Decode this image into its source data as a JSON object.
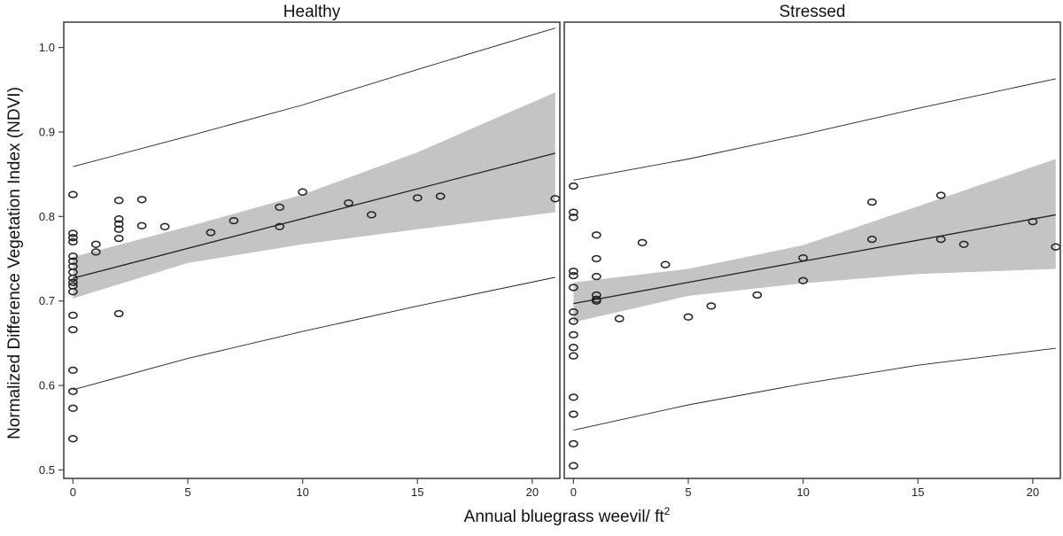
{
  "chart_data": {
    "type": "scatter",
    "ylabel": "Normalized Difference Vegetation Index (NDVI)",
    "xlabel": "Annual bluegrass weevil/ ft",
    "xlabel_superscript": "2",
    "ylim": [
      0.49,
      1.03
    ],
    "yticks": [
      "0.5",
      "0.6",
      "0.7",
      "0.8",
      "0.9",
      "1.0"
    ],
    "yticks_values": [
      0.5,
      0.6,
      0.7,
      0.8,
      0.9,
      1.0
    ],
    "xticks": [
      "0",
      "5",
      "10",
      "15",
      "20"
    ],
    "xticks_values": [
      0,
      5,
      10,
      15,
      20
    ],
    "xlim": [
      -0.4,
      21.2
    ],
    "colors": {
      "band": "#c4c4c4",
      "line": "#222222",
      "point": "#222222",
      "frame": "#444444"
    },
    "panels": [
      {
        "title": "Healthy",
        "points": [
          [
            0,
            0.826
          ],
          [
            0,
            0.78
          ],
          [
            0,
            0.775
          ],
          [
            0,
            0.77
          ],
          [
            0,
            0.753
          ],
          [
            0,
            0.747
          ],
          [
            0,
            0.741
          ],
          [
            0,
            0.734
          ],
          [
            0,
            0.727
          ],
          [
            0,
            0.722
          ],
          [
            0,
            0.718
          ],
          [
            0,
            0.711
          ],
          [
            0,
            0.683
          ],
          [
            0,
            0.666
          ],
          [
            0,
            0.618
          ],
          [
            0,
            0.593
          ],
          [
            0,
            0.573
          ],
          [
            0,
            0.537
          ],
          [
            1,
            0.767
          ],
          [
            1,
            0.758
          ],
          [
            2,
            0.819
          ],
          [
            2,
            0.797
          ],
          [
            2,
            0.791
          ],
          [
            2,
            0.785
          ],
          [
            2,
            0.774
          ],
          [
            2,
            0.685
          ],
          [
            3,
            0.82
          ],
          [
            3,
            0.789
          ],
          [
            4,
            0.788
          ],
          [
            6,
            0.781
          ],
          [
            7,
            0.795
          ],
          [
            9,
            0.811
          ],
          [
            9,
            0.788
          ],
          [
            10,
            0.829
          ],
          [
            12,
            0.816
          ],
          [
            13,
            0.802
          ],
          [
            15,
            0.822
          ],
          [
            16,
            0.824
          ],
          [
            21,
            0.821
          ]
        ],
        "fit": {
          "x": [
            0,
            21
          ],
          "y": [
            0.727,
            0.875
          ]
        },
        "ci": {
          "x": [
            0,
            5,
            10,
            15,
            21
          ],
          "lower": [
            0.703,
            0.745,
            0.767,
            0.785,
            0.805
          ],
          "upper": [
            0.752,
            0.788,
            0.826,
            0.876,
            0.947
          ]
        },
        "pi": {
          "x": [
            0,
            5,
            10,
            15,
            21
          ],
          "lower": [
            0.595,
            0.632,
            0.664,
            0.694,
            0.728
          ],
          "upper": [
            0.859,
            0.895,
            0.932,
            0.974,
            1.023
          ]
        }
      },
      {
        "title": "Stressed",
        "points": [
          [
            0,
            0.836
          ],
          [
            0,
            0.805
          ],
          [
            0,
            0.799
          ],
          [
            0,
            0.735
          ],
          [
            0,
            0.73
          ],
          [
            0,
            0.716
          ],
          [
            0,
            0.687
          ],
          [
            0,
            0.676
          ],
          [
            0,
            0.66
          ],
          [
            0,
            0.645
          ],
          [
            0,
            0.635
          ],
          [
            0,
            0.586
          ],
          [
            0,
            0.566
          ],
          [
            0,
            0.531
          ],
          [
            0,
            0.505
          ],
          [
            1,
            0.778
          ],
          [
            1,
            0.75
          ],
          [
            1,
            0.729
          ],
          [
            1,
            0.707
          ],
          [
            1,
            0.702
          ],
          [
            1,
            0.7
          ],
          [
            2,
            0.679
          ],
          [
            3,
            0.769
          ],
          [
            4,
            0.743
          ],
          [
            5,
            0.681
          ],
          [
            6,
            0.694
          ],
          [
            8,
            0.707
          ],
          [
            10,
            0.751
          ],
          [
            10,
            0.724
          ],
          [
            13,
            0.817
          ],
          [
            13,
            0.773
          ],
          [
            16,
            0.825
          ],
          [
            16,
            0.773
          ],
          [
            17,
            0.767
          ],
          [
            20,
            0.794
          ],
          [
            21,
            0.764
          ]
        ],
        "fit": {
          "x": [
            0,
            21
          ],
          "y": [
            0.697,
            0.802
          ]
        },
        "ci": {
          "x": [
            0,
            5,
            10,
            15,
            21
          ],
          "lower": [
            0.675,
            0.706,
            0.721,
            0.732,
            0.738
          ],
          "upper": [
            0.722,
            0.738,
            0.766,
            0.812,
            0.868
          ]
        },
        "pi": {
          "x": [
            0,
            5,
            10,
            15,
            21
          ],
          "lower": [
            0.547,
            0.577,
            0.602,
            0.624,
            0.644
          ],
          "upper": [
            0.843,
            0.868,
            0.897,
            0.928,
            0.963
          ]
        }
      }
    ]
  }
}
